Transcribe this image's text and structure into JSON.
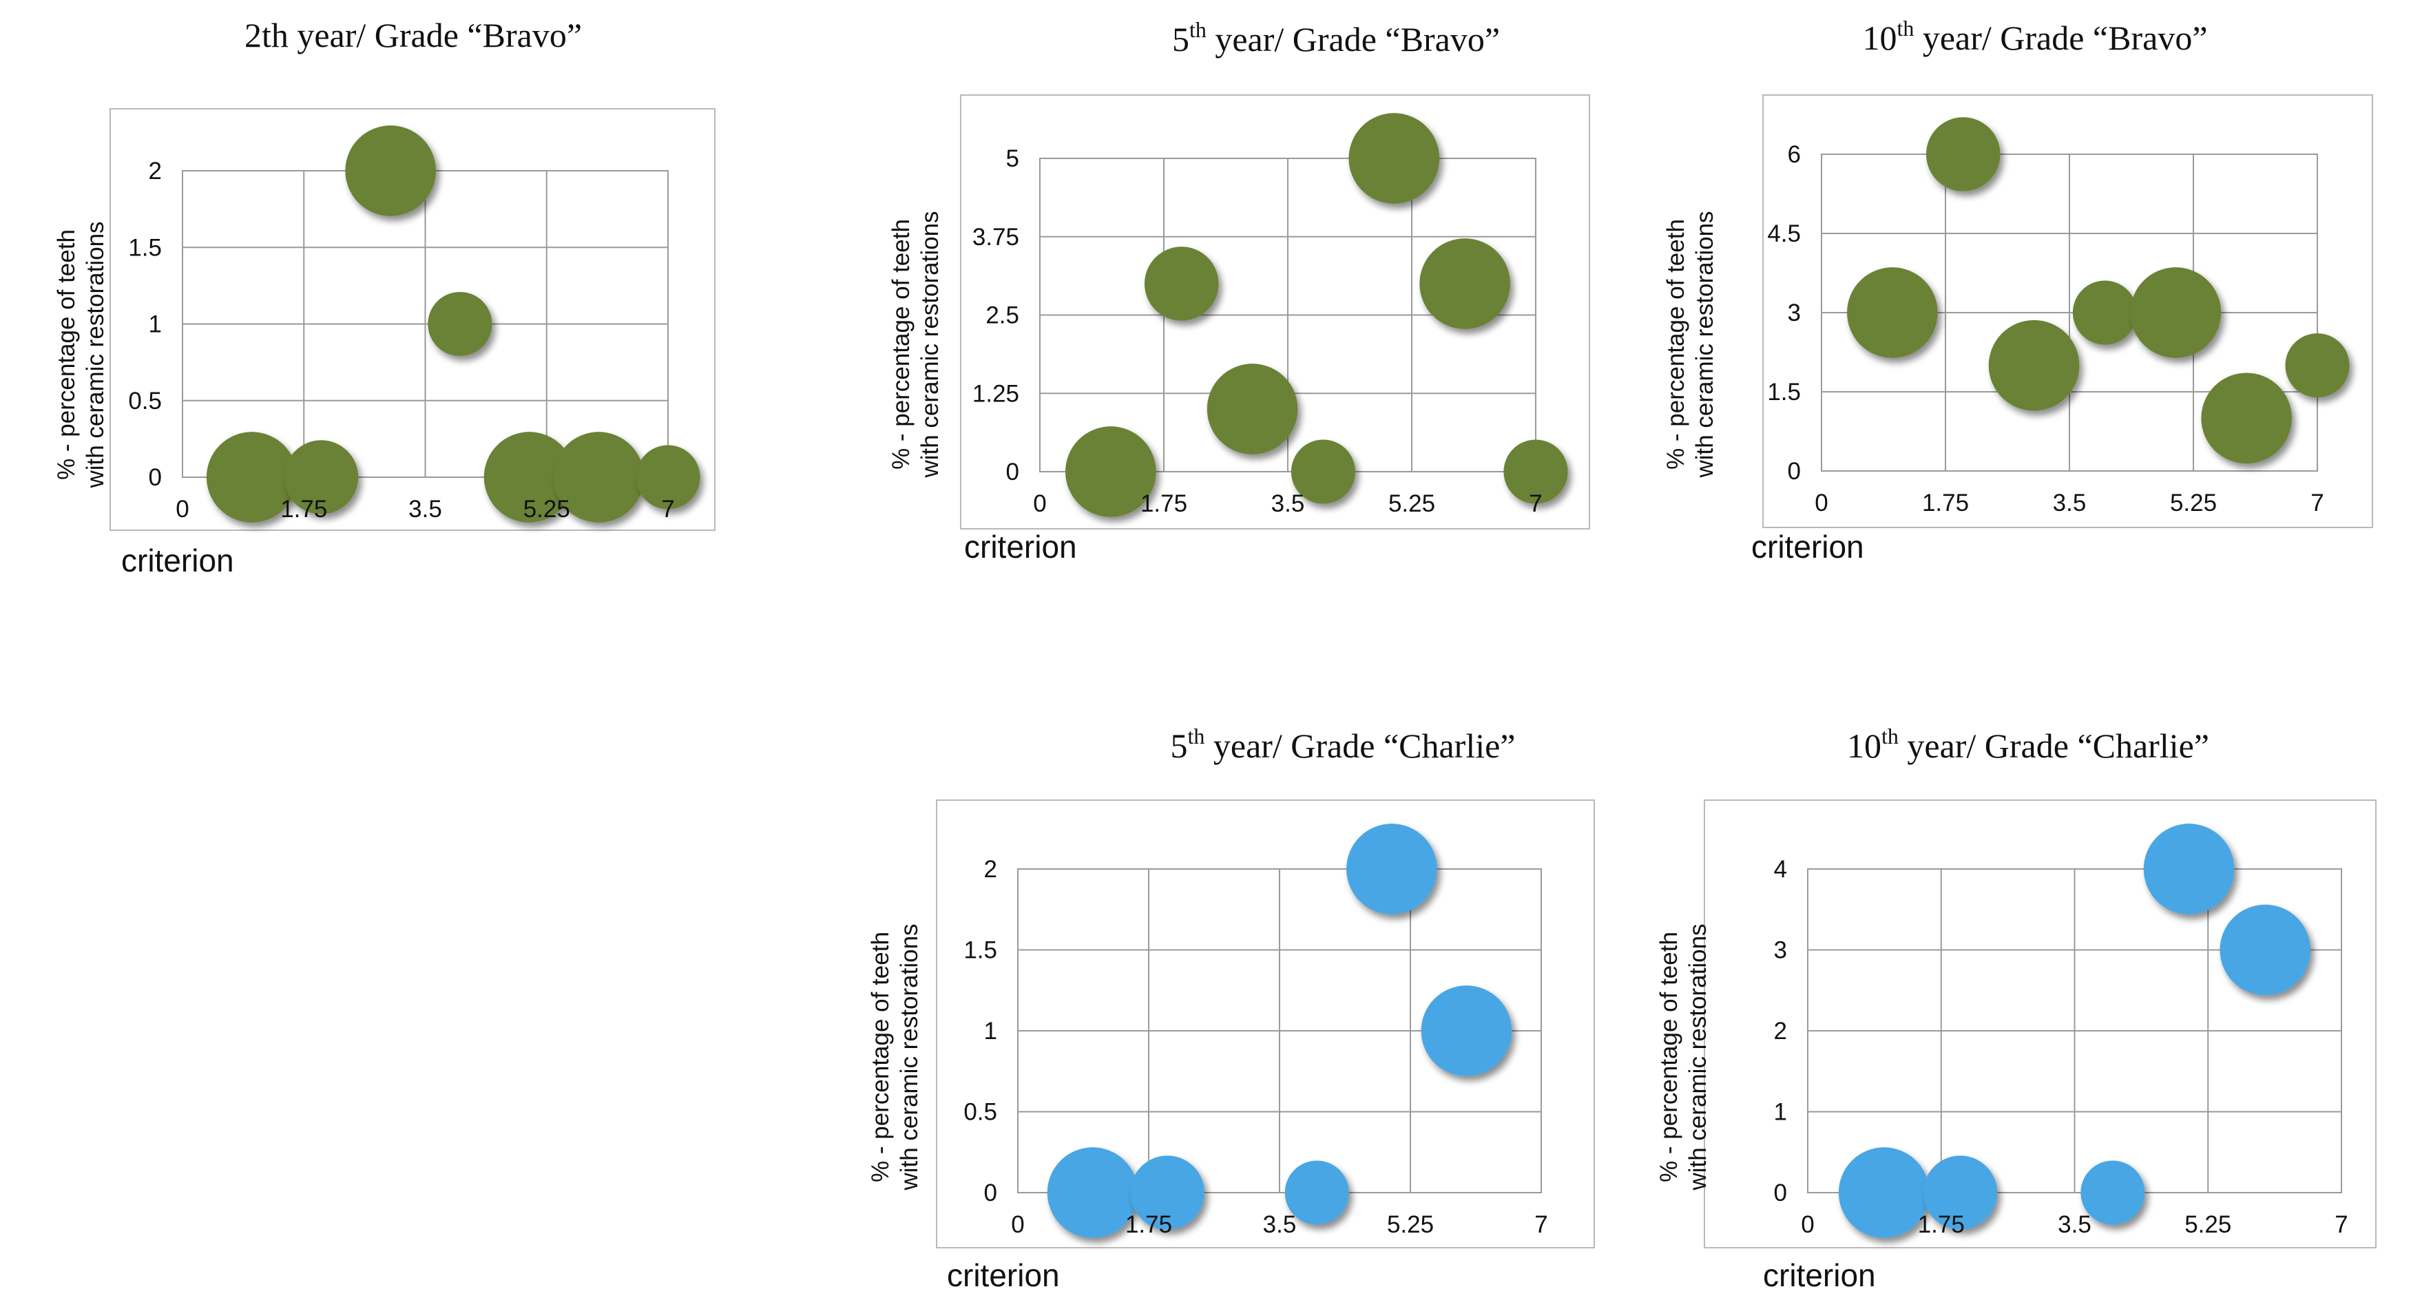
{
  "colors": {
    "bravo": "#6b8234",
    "charlie": "#4aa6e4"
  },
  "chart_data": [
    {
      "type": "scatter",
      "title": "2th year/ Grade “Bravo”",
      "title_parts": [
        "2th year/ Grade “Bravo”"
      ],
      "xlabel": "criterion",
      "ylabel": [
        "% - percentage of teeth",
        "with ceramic restorations"
      ],
      "xlim": [
        0,
        7
      ],
      "ylim": [
        0,
        2
      ],
      "xticks": [
        0,
        1.75,
        3.5,
        5.25,
        7
      ],
      "xtick_labels": [
        "0",
        "1.75",
        "3.5",
        "5.25",
        "7"
      ],
      "yticks": [
        0,
        0.5,
        1,
        1.5,
        2
      ],
      "ytick_labels": [
        "0",
        "0.5",
        "1",
        "1.5",
        "2"
      ],
      "color": "bravo",
      "points": [
        {
          "x": 1,
          "y": 0,
          "size": 3
        },
        {
          "x": 2,
          "y": 0,
          "size": 2
        },
        {
          "x": 3,
          "y": 2,
          "size": 3
        },
        {
          "x": 4,
          "y": 1,
          "size": 1.5
        },
        {
          "x": 5,
          "y": 0,
          "size": 3
        },
        {
          "x": 6,
          "y": 0,
          "size": 3
        },
        {
          "x": 7,
          "y": 0,
          "size": 1.5
        }
      ]
    },
    {
      "type": "scatter",
      "title": "5th year/ Grade “Bravo”",
      "title_parts": [
        "5",
        "th",
        " year/ Grade “Bravo”"
      ],
      "xlabel": "criterion",
      "ylabel": [
        "% - percentage of teeth",
        "with ceramic restorations"
      ],
      "xlim": [
        0,
        7
      ],
      "ylim": [
        0,
        5
      ],
      "xticks": [
        0,
        1.75,
        3.5,
        5.25,
        7
      ],
      "xtick_labels": [
        "0",
        "1.75",
        "3.5",
        "5.25",
        "7"
      ],
      "yticks": [
        0,
        1.25,
        2.5,
        3.75,
        5
      ],
      "ytick_labels": [
        "0",
        "1.25",
        "2.5",
        "3.75",
        "5"
      ],
      "color": "bravo",
      "points": [
        {
          "x": 1,
          "y": 0,
          "size": 3
        },
        {
          "x": 2,
          "y": 3,
          "size": 2
        },
        {
          "x": 3,
          "y": 1,
          "size": 3
        },
        {
          "x": 4,
          "y": 0,
          "size": 1.5
        },
        {
          "x": 5,
          "y": 5,
          "size": 3
        },
        {
          "x": 6,
          "y": 3,
          "size": 3
        },
        {
          "x": 7,
          "y": 0,
          "size": 1.5
        }
      ]
    },
    {
      "type": "scatter",
      "title": "10th year/ Grade “Bravo”",
      "title_parts": [
        "10",
        "th",
        " year/ Grade “Bravo”"
      ],
      "xlabel": "criterion",
      "ylabel": [
        "% - percentage of teeth",
        "with ceramic restorations"
      ],
      "xlim": [
        0,
        7
      ],
      "ylim": [
        0,
        6
      ],
      "xticks": [
        0,
        1.75,
        3.5,
        5.25,
        7
      ],
      "xtick_labels": [
        "0",
        "1.75",
        "3.5",
        "5.25",
        "7"
      ],
      "yticks": [
        0,
        1.5,
        3,
        4.5,
        6
      ],
      "ytick_labels": [
        "0",
        "1.5",
        "3",
        "4.5",
        "6"
      ],
      "color": "bravo",
      "points": [
        {
          "x": 1,
          "y": 3,
          "size": 3
        },
        {
          "x": 2,
          "y": 6,
          "size": 2
        },
        {
          "x": 3,
          "y": 2,
          "size": 3
        },
        {
          "x": 4,
          "y": 3,
          "size": 1.5
        },
        {
          "x": 5,
          "y": 3,
          "size": 3
        },
        {
          "x": 6,
          "y": 1,
          "size": 3
        },
        {
          "x": 7,
          "y": 2,
          "size": 1.5
        }
      ]
    },
    {
      "type": "scatter",
      "title": "5th year/ Grade “Charlie”",
      "title_parts": [
        "5",
        "th",
        " year/ Grade “Charlie”"
      ],
      "xlabel": "criterion",
      "ylabel": [
        "% - percentage of teeth",
        "with ceramic restorations"
      ],
      "xlim": [
        0,
        7
      ],
      "ylim": [
        0,
        2
      ],
      "xticks": [
        0,
        1.75,
        3.5,
        5.25,
        7
      ],
      "xtick_labels": [
        "0",
        "1.75",
        "3.5",
        "5.25",
        "7"
      ],
      "yticks": [
        0,
        0.5,
        1,
        1.5,
        2
      ],
      "ytick_labels": [
        "0",
        "0.5",
        "1",
        "1.5",
        "2"
      ],
      "color": "charlie",
      "points": [
        {
          "x": 1,
          "y": 0,
          "size": 3
        },
        {
          "x": 2,
          "y": 0,
          "size": 2
        },
        {
          "x": 4,
          "y": 0,
          "size": 1.5
        },
        {
          "x": 5,
          "y": 2,
          "size": 3
        },
        {
          "x": 6,
          "y": 1,
          "size": 3
        }
      ]
    },
    {
      "type": "scatter",
      "title": "10th year/ Grade “Charlie”",
      "title_parts": [
        "10",
        "th",
        " year/ Grade “Charlie”"
      ],
      "xlabel": "criterion",
      "ylabel": [
        "% - percentage of teeth",
        "with ceramic restorations"
      ],
      "xlim": [
        0,
        7
      ],
      "ylim": [
        0,
        4
      ],
      "xticks": [
        0,
        1.75,
        3.5,
        5.25,
        7
      ],
      "xtick_labels": [
        "0",
        "1.75",
        "3.5",
        "5.25",
        "7"
      ],
      "yticks": [
        0,
        1,
        2,
        3,
        4
      ],
      "ytick_labels": [
        "0",
        "1",
        "2",
        "3",
        "4"
      ],
      "color": "charlie",
      "points": [
        {
          "x": 1,
          "y": 0,
          "size": 3
        },
        {
          "x": 2,
          "y": 0,
          "size": 2
        },
        {
          "x": 4,
          "y": 0,
          "size": 1.5
        },
        {
          "x": 5,
          "y": 4,
          "size": 3
        },
        {
          "x": 6,
          "y": 3,
          "size": 3
        }
      ]
    }
  ]
}
